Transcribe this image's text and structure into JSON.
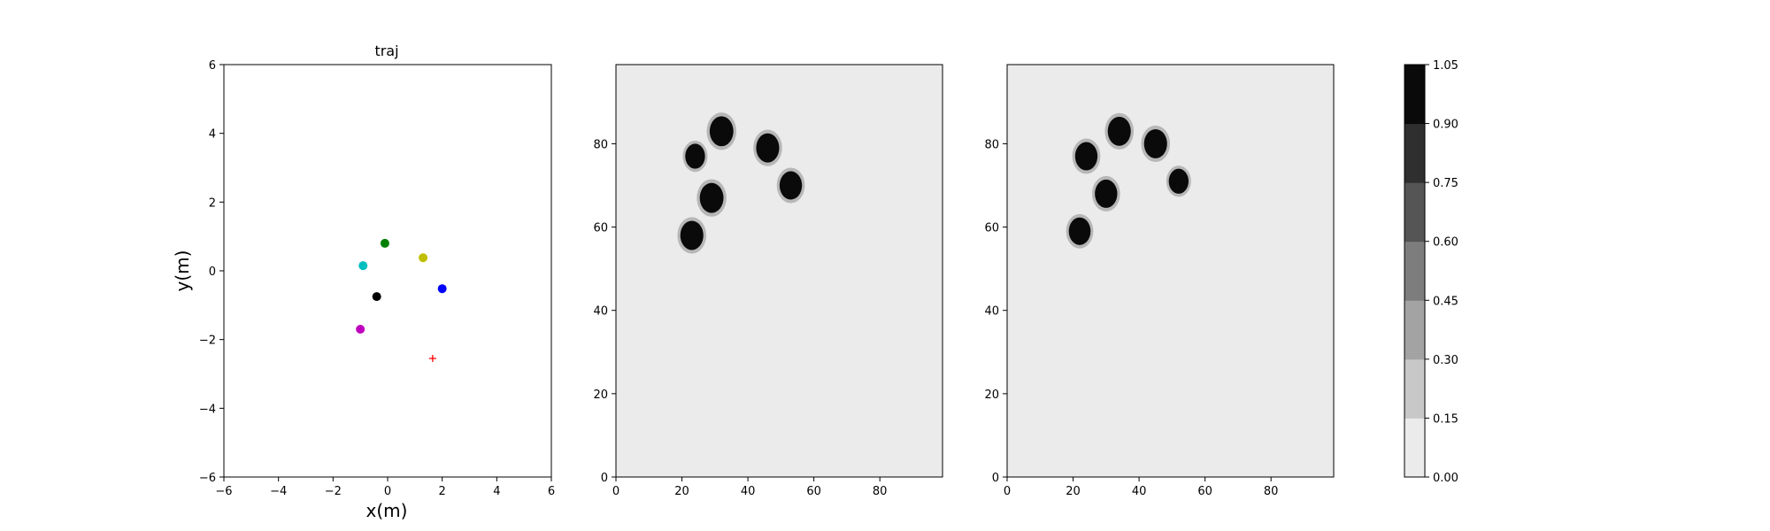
{
  "chart_data": [
    {
      "type": "scatter",
      "title": "traj",
      "xlabel": "x(m)",
      "ylabel": "y(m)",
      "xlim": [
        -6,
        6
      ],
      "ylim": [
        -6,
        6
      ],
      "xticks": [
        "−6",
        "−4",
        "−2",
        "0",
        "2",
        "4",
        "6"
      ],
      "yticks": [
        "6",
        "4",
        "2",
        "0",
        "−2",
        "−4",
        "−6"
      ],
      "grid": false,
      "points": [
        {
          "x": -0.1,
          "y": 0.8,
          "color": "#008000",
          "marker": "dot"
        },
        {
          "x": -0.9,
          "y": 0.15,
          "color": "#00bfbf",
          "marker": "dot"
        },
        {
          "x": 1.3,
          "y": 0.38,
          "color": "#bfbf00",
          "marker": "dot"
        },
        {
          "x": 2.0,
          "y": -0.52,
          "color": "#0000ff",
          "marker": "dot"
        },
        {
          "x": -0.4,
          "y": -0.75,
          "color": "#000000",
          "marker": "dot"
        },
        {
          "x": -1.0,
          "y": -1.7,
          "color": "#bf00bf",
          "marker": "dot"
        },
        {
          "x": 1.65,
          "y": -2.55,
          "color": "#ff0000",
          "marker": "plus"
        }
      ]
    },
    {
      "type": "heatmap",
      "xlim": [
        0,
        99
      ],
      "ylim": [
        0,
        99
      ],
      "xticks": [
        "0",
        "20",
        "40",
        "60",
        "80"
      ],
      "yticks": [
        "80",
        "60",
        "40",
        "20",
        "0"
      ],
      "background_level": 0.05,
      "blobs": [
        {
          "x": 23,
          "y": 58,
          "r": 3.5
        },
        {
          "x": 29,
          "y": 67,
          "r": 3.6
        },
        {
          "x": 24,
          "y": 77,
          "r": 3.0
        },
        {
          "x": 32,
          "y": 83,
          "r": 3.6
        },
        {
          "x": 46,
          "y": 79,
          "r": 3.5
        },
        {
          "x": 53,
          "y": 70,
          "r": 3.4
        }
      ]
    },
    {
      "type": "heatmap",
      "xlim": [
        0,
        99
      ],
      "ylim": [
        0,
        99
      ],
      "xticks": [
        "0",
        "20",
        "40",
        "60",
        "80"
      ],
      "yticks": [
        "80",
        "60",
        "40",
        "20",
        "0"
      ],
      "background_level": 0.05,
      "blobs": [
        {
          "x": 22,
          "y": 59,
          "r": 3.3
        },
        {
          "x": 30,
          "y": 68,
          "r": 3.4
        },
        {
          "x": 24,
          "y": 77,
          "r": 3.4
        },
        {
          "x": 34,
          "y": 83,
          "r": 3.5
        },
        {
          "x": 45,
          "y": 80,
          "r": 3.5
        },
        {
          "x": 52,
          "y": 71,
          "r": 3.0
        }
      ]
    }
  ],
  "colorbar": {
    "levels": [
      "0.00",
      "0.15",
      "0.30",
      "0.45",
      "0.60",
      "0.75",
      "0.90",
      "1.05"
    ],
    "colors": [
      "#ebebeb",
      "#c8c8c8",
      "#a3a3a3",
      "#7d7d7d",
      "#555555",
      "#2f2f2f",
      "#0a0a0a"
    ]
  }
}
